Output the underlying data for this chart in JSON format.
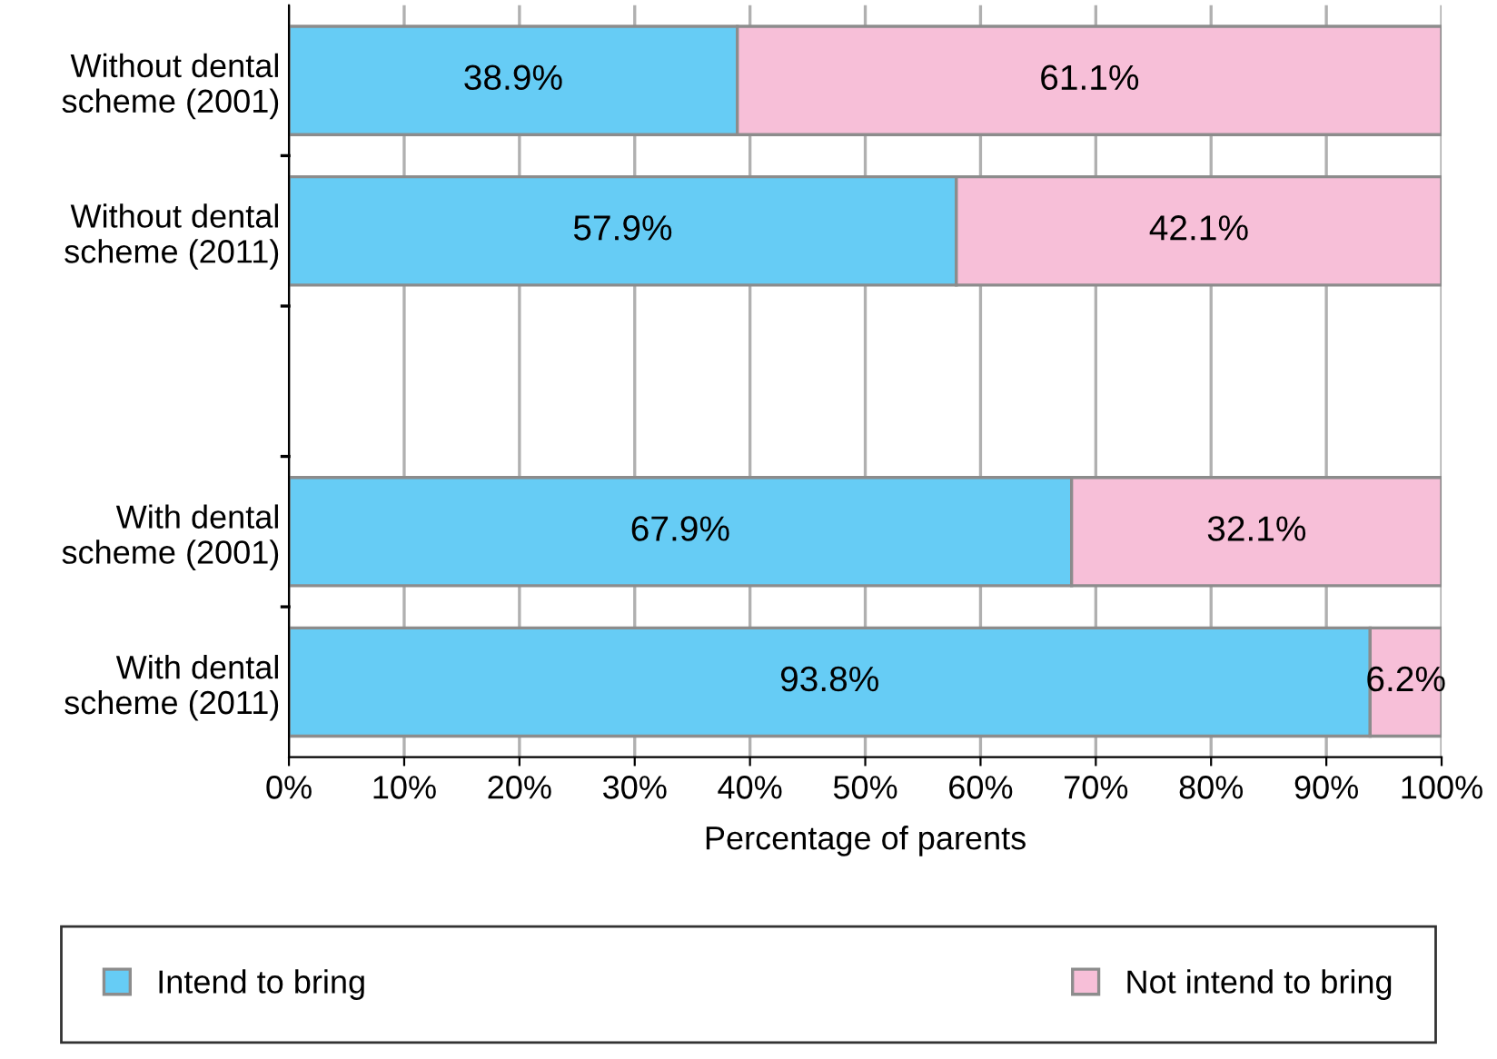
{
  "chart_data": {
    "type": "bar",
    "orientation": "horizontal",
    "stacked": true,
    "xlabel": "Percentage of parents",
    "categories": [
      "Without dental\nscheme (2001)",
      "Without dental\nscheme (2011)",
      null,
      "With dental\nscheme (2001)",
      "With dental\nscheme (2011)"
    ],
    "series": [
      {
        "name": "Intend to bring",
        "color": "#66ccf5",
        "values": [
          38.9,
          57.9,
          null,
          67.9,
          93.8
        ],
        "value_labels": [
          "38.9%",
          "57.9%",
          null,
          "67.9%",
          "93.8%"
        ]
      },
      {
        "name": "Not intend to bring",
        "color": "#f7bfd8",
        "values": [
          61.1,
          42.1,
          null,
          32.1,
          6.2
        ],
        "value_labels": [
          "61.1%",
          "42.1%",
          null,
          "32.1%",
          "6.2%"
        ]
      }
    ],
    "xlim": [
      0,
      100
    ],
    "xticks": [
      {
        "value": 0,
        "label": "0%"
      },
      {
        "value": 10,
        "label": "10%"
      },
      {
        "value": 20,
        "label": "20%"
      },
      {
        "value": 30,
        "label": "30%"
      },
      {
        "value": 40,
        "label": "40%"
      },
      {
        "value": 50,
        "label": "50%"
      },
      {
        "value": 60,
        "label": "60%"
      },
      {
        "value": 70,
        "label": "70%"
      },
      {
        "value": 80,
        "label": "80%"
      },
      {
        "value": 90,
        "label": "90%"
      },
      {
        "value": 100,
        "label": "100%"
      }
    ],
    "grid": "x",
    "legend": "bottom"
  }
}
